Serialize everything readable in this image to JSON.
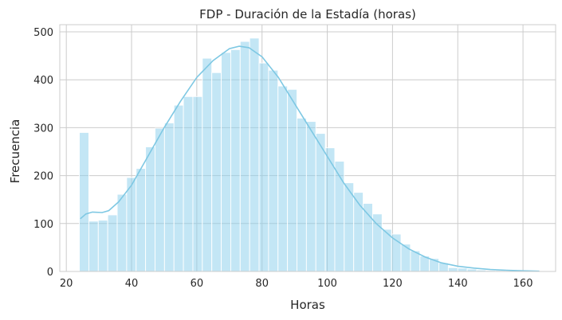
{
  "chart_data": {
    "type": "bar",
    "title": "FDP - Duración de la Estadía (horas)",
    "xlabel": "Horas",
    "ylabel": "Frecuencia",
    "xlim": [
      18,
      170
    ],
    "ylim": [
      0,
      515
    ],
    "xticks": [
      "20",
      "40",
      "60",
      "80",
      "100",
      "120",
      "140",
      "160"
    ],
    "yticks": [
      "0",
      "100",
      "200",
      "300",
      "400",
      "500"
    ],
    "grid": true,
    "bar_color": "#87ceeb",
    "bar_opacity": 0.5,
    "kde_color": "#7ec8e3",
    "bins": [
      [
        24.0,
        290
      ],
      [
        26.9,
        105
      ],
      [
        29.8,
        107
      ],
      [
        32.7,
        118
      ],
      [
        35.6,
        161
      ],
      [
        38.5,
        196
      ],
      [
        41.4,
        215
      ],
      [
        44.3,
        260
      ],
      [
        47.2,
        299
      ],
      [
        50.1,
        310
      ],
      [
        53.0,
        347
      ],
      [
        55.9,
        365
      ],
      [
        58.8,
        365
      ],
      [
        61.7,
        445
      ],
      [
        64.6,
        415
      ],
      [
        67.5,
        457
      ],
      [
        70.4,
        463
      ],
      [
        73.3,
        480
      ],
      [
        76.2,
        487
      ],
      [
        79.1,
        435
      ],
      [
        82.0,
        420
      ],
      [
        84.9,
        387
      ],
      [
        87.8,
        380
      ],
      [
        90.7,
        320
      ],
      [
        93.6,
        313
      ],
      [
        96.5,
        288
      ],
      [
        99.4,
        258
      ],
      [
        102.3,
        230
      ],
      [
        105.2,
        185
      ],
      [
        108.1,
        165
      ],
      [
        111.0,
        142
      ],
      [
        113.9,
        120
      ],
      [
        116.8,
        88
      ],
      [
        119.7,
        78
      ],
      [
        122.6,
        57
      ],
      [
        125.5,
        43
      ],
      [
        128.4,
        32
      ],
      [
        131.3,
        27
      ],
      [
        134.2,
        18
      ],
      [
        137.1,
        8
      ],
      [
        140.0,
        7
      ],
      [
        142.9,
        5
      ],
      [
        145.8,
        3
      ],
      [
        148.7,
        2
      ],
      [
        151.6,
        2
      ],
      [
        154.5,
        1
      ],
      [
        157.4,
        1
      ],
      [
        160.3,
        0.6
      ],
      [
        163.2,
        0.4
      ]
    ],
    "bin_width": 2.9,
    "kde": [
      [
        24.3,
        110
      ],
      [
        26,
        120
      ],
      [
        28,
        124
      ],
      [
        31,
        123
      ],
      [
        33,
        127
      ],
      [
        36,
        145
      ],
      [
        40,
        180
      ],
      [
        45,
        240
      ],
      [
        50,
        300
      ],
      [
        55,
        355
      ],
      [
        60,
        405
      ],
      [
        65,
        440
      ],
      [
        70,
        465
      ],
      [
        73,
        470
      ],
      [
        76,
        467
      ],
      [
        80,
        448
      ],
      [
        85,
        405
      ],
      [
        90,
        350
      ],
      [
        95,
        295
      ],
      [
        100,
        240
      ],
      [
        105,
        185
      ],
      [
        110,
        138
      ],
      [
        115,
        100
      ],
      [
        120,
        70
      ],
      [
        125,
        47
      ],
      [
        130,
        30
      ],
      [
        135,
        18
      ],
      [
        140,
        11
      ],
      [
        145,
        7
      ],
      [
        150,
        4
      ],
      [
        155,
        2.5
      ],
      [
        160,
        1.3
      ],
      [
        165,
        0.5
      ]
    ]
  }
}
